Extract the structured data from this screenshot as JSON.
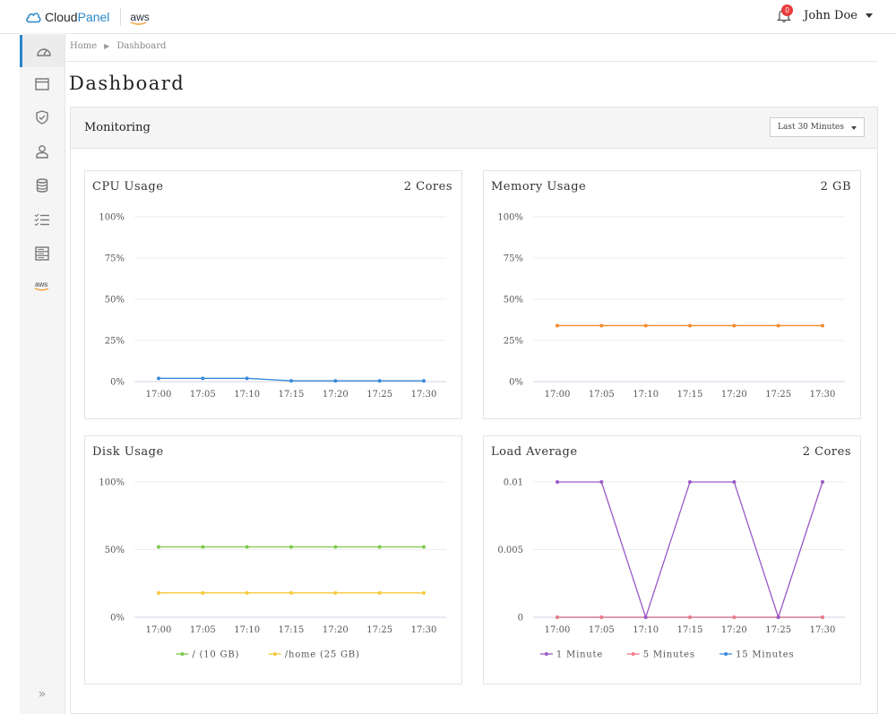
{
  "brand": {
    "name_a": "Cloud",
    "name_b": "Panel",
    "partner": "aws",
    "accent": "#2a86c8"
  },
  "user": {
    "name": "John Doe",
    "notifications": "0"
  },
  "sidebar": {
    "items": [
      {
        "icon": "dashboard-icon",
        "active": true
      },
      {
        "icon": "browser-window-icon",
        "active": false
      },
      {
        "icon": "shield-icon",
        "active": false
      },
      {
        "icon": "user-icon",
        "active": false
      },
      {
        "icon": "database-icon",
        "active": false
      },
      {
        "icon": "tasks-list-icon",
        "active": false
      },
      {
        "icon": "server-icon",
        "active": false
      },
      {
        "icon": "aws-icon",
        "active": false
      }
    ],
    "expand_label": "»"
  },
  "breadcrumb": {
    "home": "Home",
    "current": "Dashboard"
  },
  "page": {
    "title": "Dashboard"
  },
  "monitoring": {
    "title": "Monitoring",
    "range": "Last 30 Minutes"
  },
  "chart_data": [
    {
      "type": "line",
      "title": "CPU Usage",
      "meta": "2 Cores",
      "x": [
        "17:00",
        "17:05",
        "17:10",
        "17:15",
        "17:20",
        "17:25",
        "17:30"
      ],
      "ylim": [
        0,
        100
      ],
      "yticks": [
        "100%",
        "75%",
        "50%",
        "25%",
        "0%"
      ],
      "series": [
        {
          "values": [
            2,
            2,
            2,
            0.5,
            0.5,
            0.5,
            0.5
          ],
          "color": "#3b8ad8"
        }
      ]
    },
    {
      "type": "line",
      "title": "Memory Usage",
      "meta": "2 GB",
      "x": [
        "17:00",
        "17:05",
        "17:10",
        "17:15",
        "17:20",
        "17:25",
        "17:30"
      ],
      "ylim": [
        0,
        100
      ],
      "yticks": [
        "100%",
        "75%",
        "50%",
        "25%",
        "0%"
      ],
      "series": [
        {
          "values": [
            34,
            34,
            34,
            34,
            34,
            34,
            34
          ],
          "color": "#f28a2e"
        }
      ]
    },
    {
      "type": "line",
      "title": "Disk Usage",
      "meta": "",
      "x": [
        "17:00",
        "17:05",
        "17:10",
        "17:15",
        "17:20",
        "17:25",
        "17:30"
      ],
      "ylim": [
        0,
        100
      ],
      "yticks": [
        "100%",
        "50%",
        "0%"
      ],
      "series": [
        {
          "name": "/ (10 GB)",
          "values": [
            52,
            52,
            52,
            52,
            52,
            52,
            52
          ],
          "color": "#7cc94a"
        },
        {
          "name": "/home (25 GB)",
          "values": [
            18,
            18,
            18,
            18,
            18,
            18,
            18
          ],
          "color": "#f7c93a"
        }
      ]
    },
    {
      "type": "line",
      "title": "Load Average",
      "meta": "2 Cores",
      "x": [
        "17:00",
        "17:05",
        "17:10",
        "17:15",
        "17:20",
        "17:25",
        "17:30"
      ],
      "ylim": [
        0,
        0.01
      ],
      "yticks": [
        "0.01",
        "0.005",
        "0"
      ],
      "series": [
        {
          "name": "1 Minute",
          "values": [
            0.01,
            0.01,
            0,
            0.01,
            0.01,
            0,
            0.01
          ],
          "color": "#9b59c6"
        },
        {
          "name": "5 Minutes",
          "values": [
            0,
            0,
            0,
            0,
            0,
            0,
            0
          ],
          "color": "#f07c8c"
        },
        {
          "name": "15 Minutes",
          "values": [
            0,
            0,
            0,
            0,
            0,
            0,
            0
          ],
          "color": "#3b8ad8"
        }
      ]
    }
  ]
}
